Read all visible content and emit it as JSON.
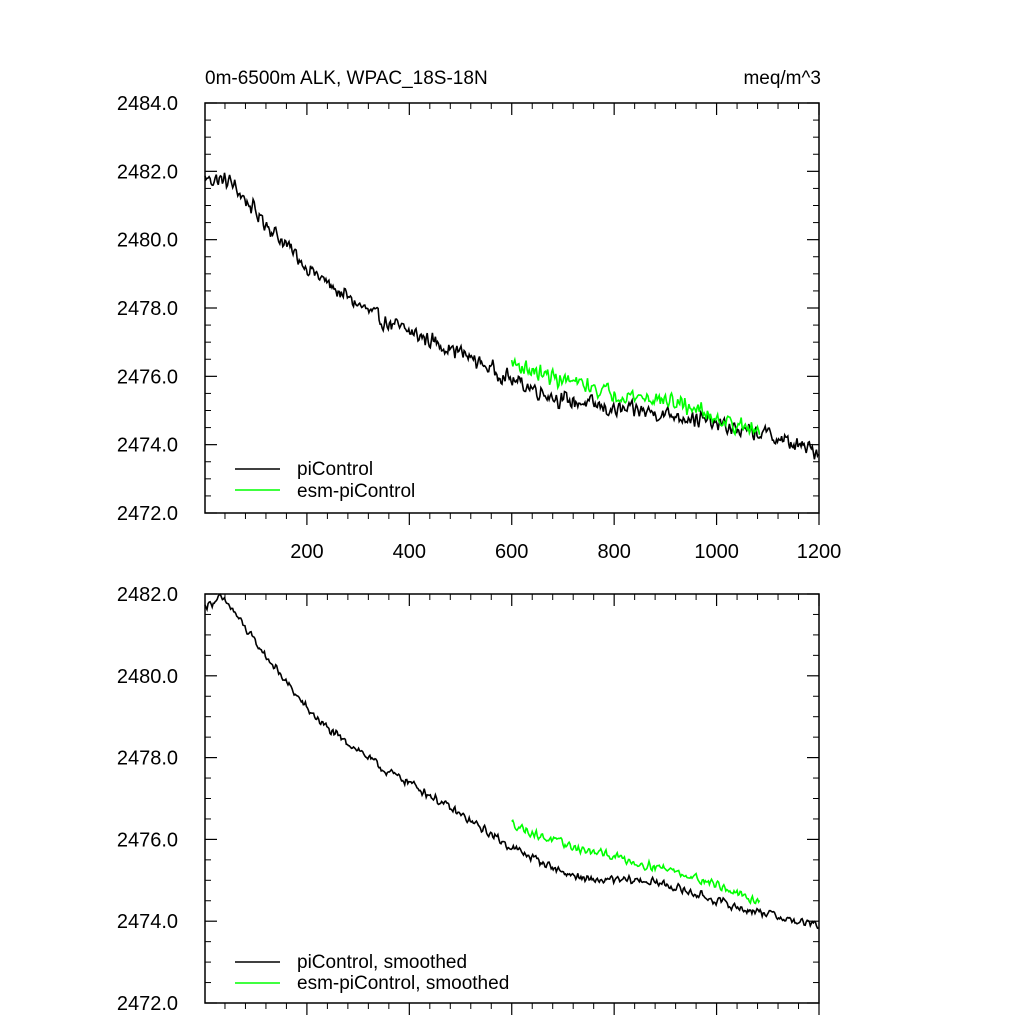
{
  "chart_data": [
    {
      "type": "line",
      "title": "0m-6500m ALK, WPAC_18S-18N",
      "units": "meq/m^3",
      "xlim": [
        1,
        1200
      ],
      "ylim": [
        2472.0,
        2484.0
      ],
      "x_ticks": [
        200,
        400,
        600,
        800,
        1000,
        1200
      ],
      "x_tick_labels": [
        "200",
        "400",
        "600",
        "800",
        "1000",
        "1200"
      ],
      "y_ticks": [
        2472.0,
        2474.0,
        2476.0,
        2478.0,
        2480.0,
        2482.0,
        2484.0
      ],
      "y_tick_labels": [
        "2472.0",
        "2474.0",
        "2476.0",
        "2478.0",
        "2480.0",
        "2482.0",
        "2484.0"
      ],
      "series": [
        {
          "name": "piControl",
          "color": "#000000",
          "noise": 0.3,
          "x_range": [
            1,
            1200
          ],
          "anchors": [
            [
              1,
              2481.8
            ],
            [
              50,
              2481.7
            ],
            [
              100,
              2480.8
            ],
            [
              150,
              2480.0
            ],
            [
              200,
              2479.2
            ],
            [
              250,
              2478.6
            ],
            [
              300,
              2478.1
            ],
            [
              350,
              2477.6
            ],
            [
              400,
              2477.3
            ],
            [
              450,
              2477.0
            ],
            [
              500,
              2476.7
            ],
            [
              550,
              2476.3
            ],
            [
              600,
              2475.9
            ],
            [
              650,
              2475.6
            ],
            [
              700,
              2475.3
            ],
            [
              750,
              2475.2
            ],
            [
              800,
              2475.0
            ],
            [
              850,
              2475.0
            ],
            [
              900,
              2474.9
            ],
            [
              950,
              2474.8
            ],
            [
              1000,
              2474.6
            ],
            [
              1050,
              2474.4
            ],
            [
              1100,
              2474.3
            ],
            [
              1150,
              2474.0
            ],
            [
              1200,
              2473.8
            ]
          ]
        },
        {
          "name": "esm-piControl",
          "color": "#00ff00",
          "noise": 0.3,
          "x_range": [
            600,
            1085
          ],
          "anchors": [
            [
              600,
              2476.4
            ],
            [
              650,
              2476.1
            ],
            [
              700,
              2475.9
            ],
            [
              750,
              2475.7
            ],
            [
              800,
              2475.5
            ],
            [
              850,
              2475.4
            ],
            [
              900,
              2475.3
            ],
            [
              950,
              2475.1
            ],
            [
              1000,
              2474.8
            ],
            [
              1050,
              2474.5
            ],
            [
              1085,
              2474.4
            ]
          ]
        }
      ],
      "legend": {
        "position": "bottom-left",
        "entries": [
          "piControl",
          "esm-piControl"
        ]
      }
    },
    {
      "type": "line",
      "title": "",
      "xlim": [
        1,
        1200
      ],
      "ylim": [
        2472.0,
        2482.0
      ],
      "x_ticks": [
        200,
        400,
        600,
        800,
        1000,
        1200
      ],
      "x_tick_labels": [],
      "y_ticks": [
        2472.0,
        2474.0,
        2476.0,
        2478.0,
        2480.0,
        2482.0
      ],
      "y_tick_labels": [
        "2472.0",
        "2474.0",
        "2476.0",
        "2478.0",
        "2480.0",
        "2482.0"
      ],
      "series": [
        {
          "name": "piControl, smoothed",
          "color": "#000000",
          "noise": 0.13,
          "x_range": [
            1,
            1200
          ],
          "anchors": [
            [
              1,
              2481.7
            ],
            [
              30,
              2481.9
            ],
            [
              50,
              2481.7
            ],
            [
              100,
              2480.8
            ],
            [
              150,
              2480.0
            ],
            [
              200,
              2479.2
            ],
            [
              250,
              2478.6
            ],
            [
              300,
              2478.2
            ],
            [
              350,
              2477.7
            ],
            [
              400,
              2477.4
            ],
            [
              450,
              2477.0
            ],
            [
              500,
              2476.6
            ],
            [
              550,
              2476.2
            ],
            [
              600,
              2475.8
            ],
            [
              650,
              2475.5
            ],
            [
              700,
              2475.2
            ],
            [
              750,
              2475.0
            ],
            [
              800,
              2475.0
            ],
            [
              850,
              2475.0
            ],
            [
              900,
              2474.9
            ],
            [
              950,
              2474.7
            ],
            [
              1000,
              2474.5
            ],
            [
              1050,
              2474.3
            ],
            [
              1100,
              2474.2
            ],
            [
              1150,
              2474.0
            ],
            [
              1200,
              2473.9
            ]
          ]
        },
        {
          "name": "esm-piControl, smoothed",
          "color": "#00ff00",
          "noise": 0.13,
          "x_range": [
            600,
            1085
          ],
          "anchors": [
            [
              600,
              2476.4
            ],
            [
              650,
              2476.1
            ],
            [
              700,
              2475.9
            ],
            [
              750,
              2475.7
            ],
            [
              800,
              2475.6
            ],
            [
              850,
              2475.4
            ],
            [
              900,
              2475.3
            ],
            [
              950,
              2475.1
            ],
            [
              1000,
              2474.9
            ],
            [
              1050,
              2474.6
            ],
            [
              1085,
              2474.5
            ]
          ]
        }
      ],
      "legend": {
        "position": "bottom-left",
        "entries": [
          "piControl, smoothed",
          "esm-piControl, smoothed"
        ]
      }
    }
  ]
}
